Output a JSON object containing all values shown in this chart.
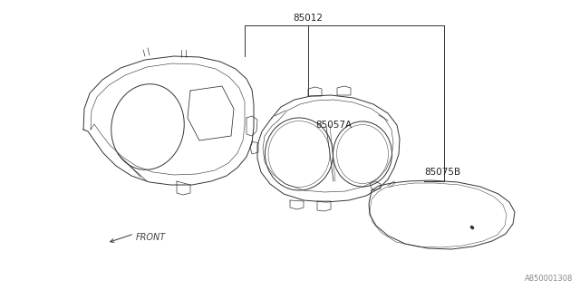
{
  "background_color": "#ffffff",
  "line_color": "#333333",
  "line_width": 0.7,
  "watermark": "A850001308",
  "label_85012": "85012",
  "label_85057A": "85057A",
  "label_85075B": "85075B",
  "front_text": "←FRONT"
}
